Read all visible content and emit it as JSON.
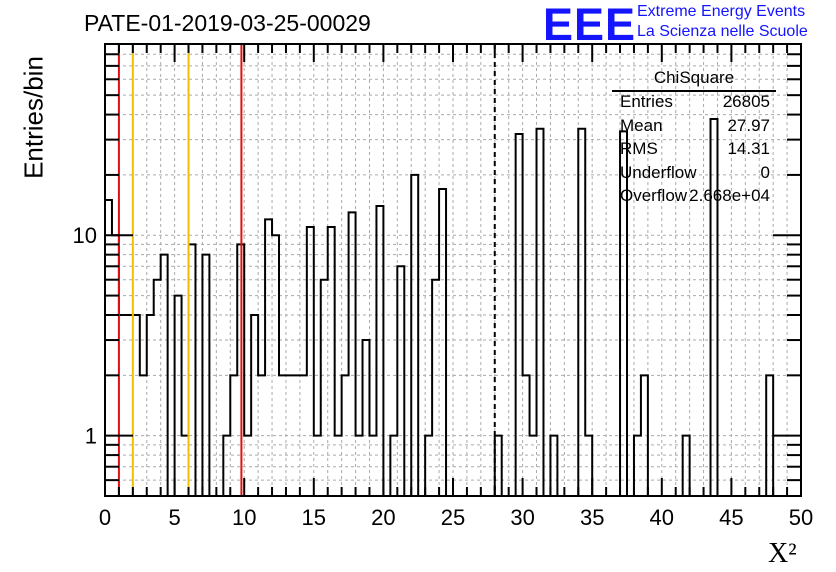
{
  "title": "PATE-01-2019-03-25-00029",
  "ylabel": "Entries/bin",
  "xlabel": "X²",
  "logo": {
    "mark": "EEE",
    "line1": "Extreme Energy Events",
    "line2": "La Scienza nelle Scuole"
  },
  "stats": {
    "title": "ChiSquare",
    "rows": [
      {
        "key": "Entries",
        "value": "26805"
      },
      {
        "key": "Mean",
        "value": "27.97"
      },
      {
        "key": "RMS",
        "value": "14.31"
      },
      {
        "key": "Underflow",
        "value": "0"
      },
      {
        "key": "Overflow",
        "value": "2.668e+04"
      }
    ]
  },
  "colors": {
    "red_line": "#e01010",
    "yellow_line": "#f0c000",
    "logo": "#1414ff"
  },
  "chart_data": {
    "type": "bar",
    "histogram": "step",
    "bin_width": 0.5,
    "x_range": [
      0,
      50
    ],
    "y_range": [
      0.5,
      90
    ],
    "log_y": true,
    "grid": true,
    "x_ticks": [
      0,
      5,
      10,
      15,
      20,
      25,
      30,
      35,
      40,
      45,
      50
    ],
    "y_ticks": [
      1,
      10
    ],
    "values": [
      15,
      10,
      4,
      4,
      4,
      2,
      4,
      6,
      8,
      0,
      5,
      1,
      9,
      0,
      8,
      0,
      0,
      1,
      2,
      9,
      1,
      4,
      2,
      12,
      10,
      2,
      2,
      2,
      2,
      11,
      1,
      6,
      11,
      1,
      2,
      13,
      1,
      3,
      1,
      14,
      0,
      1,
      7,
      0,
      20,
      0,
      1,
      6,
      17,
      0,
      0,
      0,
      0,
      0,
      0,
      0,
      1,
      0,
      0,
      32,
      2,
      1,
      34,
      0,
      1,
      0,
      0,
      0,
      34,
      1,
      0,
      0,
      0,
      0,
      33,
      0,
      1,
      2,
      0,
      0,
      0,
      0,
      0,
      1,
      0,
      0,
      0,
      38,
      0,
      0,
      0,
      0,
      0,
      0,
      0,
      2,
      0,
      0,
      0,
      0
    ],
    "vlines": [
      {
        "x": 1.0,
        "color": "red",
        "style": "solid"
      },
      {
        "x": 2.0,
        "color": "yellow",
        "style": "solid"
      },
      {
        "x": 6.0,
        "color": "yellow",
        "style": "solid"
      },
      {
        "x": 9.8,
        "color": "red",
        "style": "solid"
      },
      {
        "x": 28.0,
        "color": "black",
        "style": "dashed"
      }
    ]
  }
}
